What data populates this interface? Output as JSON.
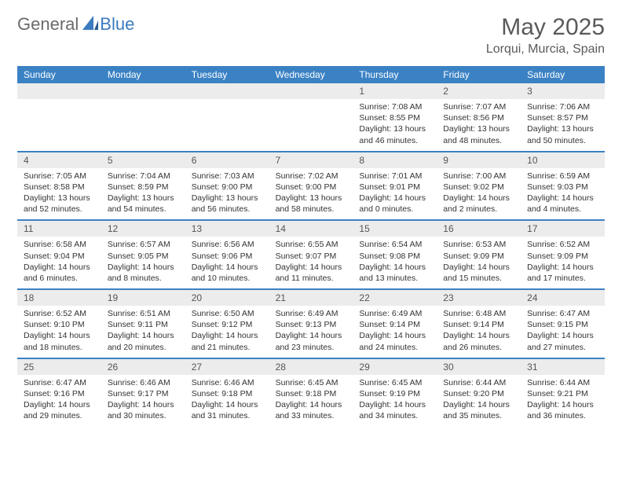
{
  "brand": {
    "part1": "General",
    "part2": "Blue"
  },
  "title": "May 2025",
  "subtitle": "Lorqui, Murcia, Spain",
  "colors": {
    "header_bg": "#3b82c4",
    "header_text": "#ffffff",
    "daynum_bg": "#ececec",
    "border": "#3b82c4",
    "body_text": "#333333",
    "title_text": "#5a5a5a"
  },
  "day_names": [
    "Sunday",
    "Monday",
    "Tuesday",
    "Wednesday",
    "Thursday",
    "Friday",
    "Saturday"
  ],
  "weeks": [
    [
      null,
      null,
      null,
      null,
      {
        "n": "1",
        "sunrise": "7:08 AM",
        "sunset": "8:55 PM",
        "daylight": "13 hours and 46 minutes."
      },
      {
        "n": "2",
        "sunrise": "7:07 AM",
        "sunset": "8:56 PM",
        "daylight": "13 hours and 48 minutes."
      },
      {
        "n": "3",
        "sunrise": "7:06 AM",
        "sunset": "8:57 PM",
        "daylight": "13 hours and 50 minutes."
      }
    ],
    [
      {
        "n": "4",
        "sunrise": "7:05 AM",
        "sunset": "8:58 PM",
        "daylight": "13 hours and 52 minutes."
      },
      {
        "n": "5",
        "sunrise": "7:04 AM",
        "sunset": "8:59 PM",
        "daylight": "13 hours and 54 minutes."
      },
      {
        "n": "6",
        "sunrise": "7:03 AM",
        "sunset": "9:00 PM",
        "daylight": "13 hours and 56 minutes."
      },
      {
        "n": "7",
        "sunrise": "7:02 AM",
        "sunset": "9:00 PM",
        "daylight": "13 hours and 58 minutes."
      },
      {
        "n": "8",
        "sunrise": "7:01 AM",
        "sunset": "9:01 PM",
        "daylight": "14 hours and 0 minutes."
      },
      {
        "n": "9",
        "sunrise": "7:00 AM",
        "sunset": "9:02 PM",
        "daylight": "14 hours and 2 minutes."
      },
      {
        "n": "10",
        "sunrise": "6:59 AM",
        "sunset": "9:03 PM",
        "daylight": "14 hours and 4 minutes."
      }
    ],
    [
      {
        "n": "11",
        "sunrise": "6:58 AM",
        "sunset": "9:04 PM",
        "daylight": "14 hours and 6 minutes."
      },
      {
        "n": "12",
        "sunrise": "6:57 AM",
        "sunset": "9:05 PM",
        "daylight": "14 hours and 8 minutes."
      },
      {
        "n": "13",
        "sunrise": "6:56 AM",
        "sunset": "9:06 PM",
        "daylight": "14 hours and 10 minutes."
      },
      {
        "n": "14",
        "sunrise": "6:55 AM",
        "sunset": "9:07 PM",
        "daylight": "14 hours and 11 minutes."
      },
      {
        "n": "15",
        "sunrise": "6:54 AM",
        "sunset": "9:08 PM",
        "daylight": "14 hours and 13 minutes."
      },
      {
        "n": "16",
        "sunrise": "6:53 AM",
        "sunset": "9:09 PM",
        "daylight": "14 hours and 15 minutes."
      },
      {
        "n": "17",
        "sunrise": "6:52 AM",
        "sunset": "9:09 PM",
        "daylight": "14 hours and 17 minutes."
      }
    ],
    [
      {
        "n": "18",
        "sunrise": "6:52 AM",
        "sunset": "9:10 PM",
        "daylight": "14 hours and 18 minutes."
      },
      {
        "n": "19",
        "sunrise": "6:51 AM",
        "sunset": "9:11 PM",
        "daylight": "14 hours and 20 minutes."
      },
      {
        "n": "20",
        "sunrise": "6:50 AM",
        "sunset": "9:12 PM",
        "daylight": "14 hours and 21 minutes."
      },
      {
        "n": "21",
        "sunrise": "6:49 AM",
        "sunset": "9:13 PM",
        "daylight": "14 hours and 23 minutes."
      },
      {
        "n": "22",
        "sunrise": "6:49 AM",
        "sunset": "9:14 PM",
        "daylight": "14 hours and 24 minutes."
      },
      {
        "n": "23",
        "sunrise": "6:48 AM",
        "sunset": "9:14 PM",
        "daylight": "14 hours and 26 minutes."
      },
      {
        "n": "24",
        "sunrise": "6:47 AM",
        "sunset": "9:15 PM",
        "daylight": "14 hours and 27 minutes."
      }
    ],
    [
      {
        "n": "25",
        "sunrise": "6:47 AM",
        "sunset": "9:16 PM",
        "daylight": "14 hours and 29 minutes."
      },
      {
        "n": "26",
        "sunrise": "6:46 AM",
        "sunset": "9:17 PM",
        "daylight": "14 hours and 30 minutes."
      },
      {
        "n": "27",
        "sunrise": "6:46 AM",
        "sunset": "9:18 PM",
        "daylight": "14 hours and 31 minutes."
      },
      {
        "n": "28",
        "sunrise": "6:45 AM",
        "sunset": "9:18 PM",
        "daylight": "14 hours and 33 minutes."
      },
      {
        "n": "29",
        "sunrise": "6:45 AM",
        "sunset": "9:19 PM",
        "daylight": "14 hours and 34 minutes."
      },
      {
        "n": "30",
        "sunrise": "6:44 AM",
        "sunset": "9:20 PM",
        "daylight": "14 hours and 35 minutes."
      },
      {
        "n": "31",
        "sunrise": "6:44 AM",
        "sunset": "9:21 PM",
        "daylight": "14 hours and 36 minutes."
      }
    ]
  ],
  "labels": {
    "sunrise_prefix": "Sunrise: ",
    "sunset_prefix": "Sunset: ",
    "daylight_prefix": "Daylight: "
  }
}
